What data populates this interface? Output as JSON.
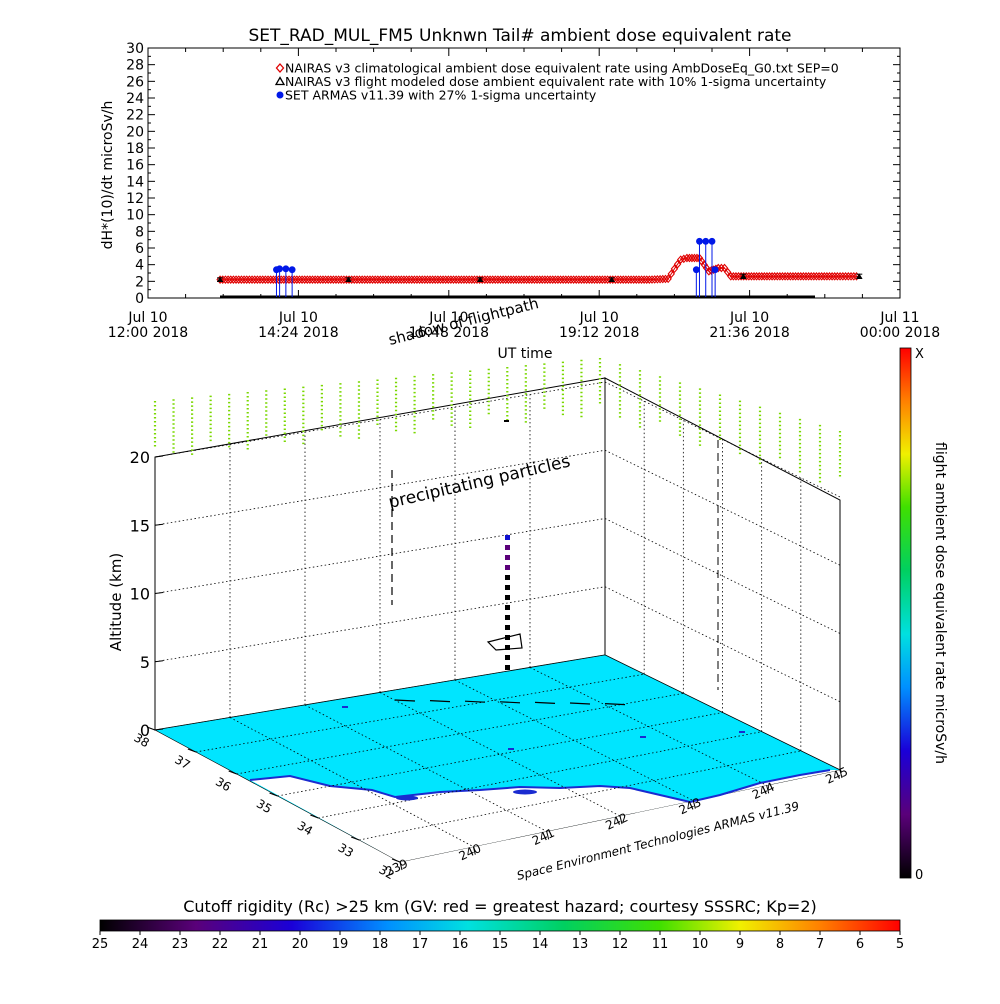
{
  "chart_data": [
    {
      "type": "scatter",
      "title": "SET_RAD_MUL_FM5 Unknwn Tail#  ambient dose equivalent rate",
      "ylabel": "dH*(10)/dt microSv/h",
      "xlabel": "UT time",
      "ylim": [
        0,
        30
      ],
      "yticks": [
        "0",
        "2",
        "4",
        "6",
        "8",
        "10",
        "12",
        "14",
        "16",
        "18",
        "20",
        "22",
        "24",
        "26",
        "28",
        "30"
      ],
      "xlim_hours": [
        12.0,
        24.0
      ],
      "xticks": [
        {
          "hour": 12.0,
          "line1": "Jul 10",
          "line2": "12:00 2018"
        },
        {
          "hour": 14.4,
          "line1": "Jul 10",
          "line2": "14:24 2018"
        },
        {
          "hour": 16.8,
          "line1": "Jul 10",
          "line2": "16:48 2018"
        },
        {
          "hour": 19.2,
          "line1": "Jul 10",
          "line2": "19:12 2018"
        },
        {
          "hour": 21.6,
          "line1": "Jul 10",
          "line2": "21:36 2018"
        },
        {
          "hour": 24.0,
          "line1": "Jul 11",
          "line2": "00:00 2018"
        }
      ],
      "legend": [
        {
          "label": "NAIRAS v3 climatological ambient dose equivalent rate using AmbDoseEq_G0.txt SEP=0",
          "color": "#e00000",
          "marker": "diamond"
        },
        {
          "label": "NAIRAS v3 flight modeled dose ambient equivalent rate with 10% 1-sigma uncertainty",
          "color": "#000000",
          "marker": "triangle"
        },
        {
          "label": "SET ARMAS v11.39 with 27% 1-sigma uncertainty",
          "color": "#0018e8",
          "marker": "circle"
        }
      ],
      "series": [
        {
          "name": "NAIRAS v3 climatological ambient dose equivalent rate using AmbDoseEq_G0.txt SEP=0",
          "color": "#e00000",
          "points": [
            [
              13.15,
              2.2
            ],
            [
              14.0,
              2.2
            ],
            [
              15.0,
              2.2
            ],
            [
              16.0,
              2.2
            ],
            [
              17.0,
              2.2
            ],
            [
              18.0,
              2.2
            ],
            [
              19.0,
              2.2
            ],
            [
              20.0,
              2.2
            ],
            [
              20.3,
              2.3
            ],
            [
              20.4,
              3.5
            ],
            [
              20.5,
              4.6
            ],
            [
              20.6,
              4.8
            ],
            [
              20.8,
              4.8
            ],
            [
              20.95,
              3.2
            ],
            [
              21.1,
              3.6
            ],
            [
              21.2,
              3.6
            ],
            [
              21.3,
              2.6
            ],
            [
              22.0,
              2.6
            ],
            [
              23.0,
              2.6
            ],
            [
              23.35,
              2.6
            ]
          ]
        },
        {
          "name": "NAIRAS v3 flight modeled dose ambient equivalent rate with 10% 1-sigma uncertainty",
          "color": "#000000",
          "points": [
            [
              13.15,
              2.2
            ],
            [
              15.2,
              2.2
            ],
            [
              17.3,
              2.2
            ],
            [
              19.4,
              2.2
            ],
            [
              21.5,
              2.6
            ],
            [
              23.35,
              2.6
            ]
          ]
        },
        {
          "name": "SET ARMAS v11.39 with 27% 1-sigma uncertainty",
          "color": "#0018e8",
          "points": [
            [
              14.05,
              3.4
            ],
            [
              14.1,
              3.5
            ],
            [
              14.2,
              3.5
            ],
            [
              14.3,
              3.4
            ],
            [
              20.75,
              3.4
            ],
            [
              20.8,
              6.8
            ],
            [
              20.9,
              6.8
            ],
            [
              21.0,
              6.8
            ],
            [
              21.05,
              3.4
            ]
          ]
        }
      ]
    },
    {
      "type": "scatter",
      "label": "3D flight path view",
      "zlabel": "Altitude (km)",
      "zticks": [
        "0",
        "5",
        "10",
        "15",
        "20"
      ],
      "lat_ticks": [
        "38",
        "37",
        "36",
        "35",
        "34",
        "33",
        "32"
      ],
      "lon_ticks": [
        "239",
        "240",
        "241",
        "242",
        "243",
        "244",
        "245"
      ],
      "annotations": [
        "shadow of flightpath",
        "precipitating particles",
        "Space Environment Technologies ARMAS v11.39"
      ],
      "surface_color": "#00e5ff",
      "curtain_color": "#7ad800"
    },
    {
      "type": "heatmap",
      "label": "dose colorbar",
      "title": "flight ambient dose equivalent rate microSv/h",
      "top_label": "X",
      "bottom_label": "0"
    },
    {
      "type": "heatmap",
      "label": "cutoff rigidity colorbar",
      "title": "Cutoff rigidity (Rc) >25 km (GV: red = greatest hazard; courtesy SSSRC; Kp=2)",
      "ticks": [
        "25",
        "24",
        "23",
        "22",
        "21",
        "20",
        "19",
        "18",
        "17",
        "16",
        "15",
        "14",
        "13",
        "12",
        "11",
        "10",
        "9",
        "8",
        "7",
        "6",
        "5"
      ]
    }
  ]
}
